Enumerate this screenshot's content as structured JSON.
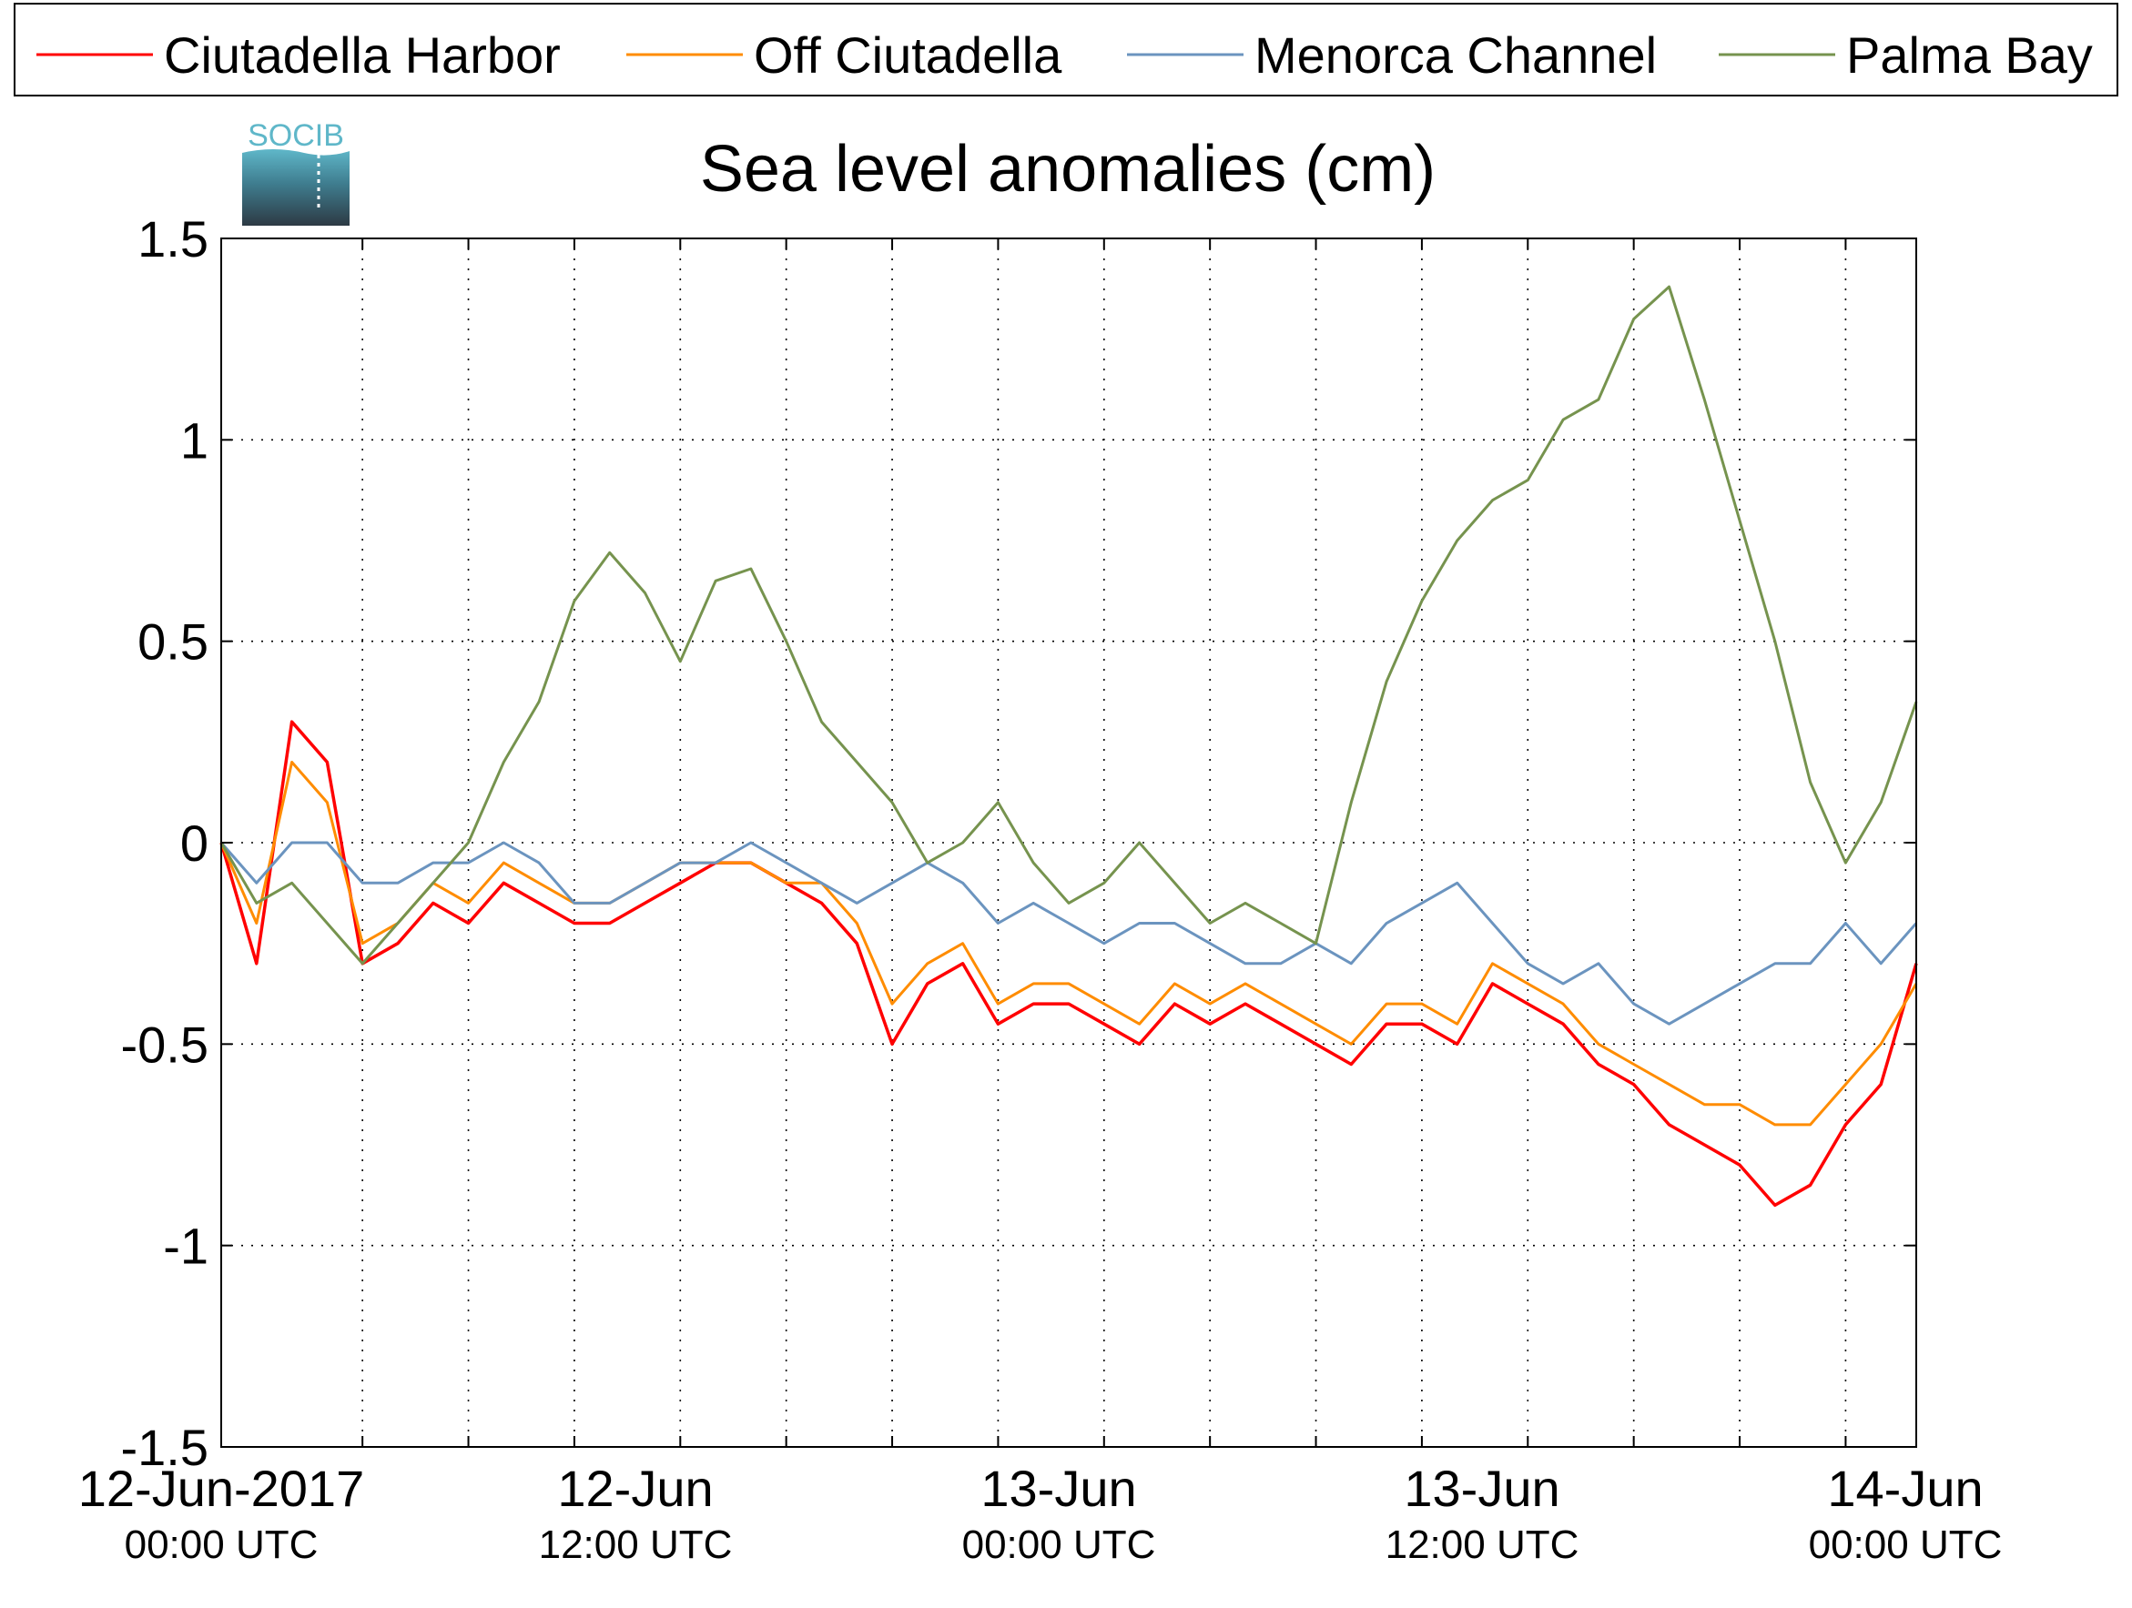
{
  "chart_data": {
    "type": "line",
    "title": "Sea level anomalies (cm)",
    "logo_text": "SOCIB",
    "xlabel": "",
    "ylabel": "",
    "ylim": [
      -1.5,
      1.5
    ],
    "y_ticks": [
      -1.5,
      -1,
      -0.5,
      0,
      0.5,
      1,
      1.5
    ],
    "y_tick_labels": [
      "-1.5",
      "-1",
      "-0.5",
      "0",
      "0.5",
      "1",
      "1.5"
    ],
    "x_range_hours": [
      -10,
      38
    ],
    "x_tick_labels": [
      {
        "date": "12-Jun-2017",
        "time": "00:00 UTC",
        "hour": 0
      },
      {
        "date": "12-Jun",
        "time": "12:00 UTC",
        "hour": 12
      },
      {
        "date": "13-Jun",
        "time": "00:00 UTC",
        "hour": 24
      },
      {
        "date": "13-Jun",
        "time": "12:00 UTC",
        "hour": 36
      },
      {
        "date": "14-Jun",
        "time": "00:00 UTC",
        "hour": 48
      }
    ],
    "grid": true,
    "legend_position": "top",
    "series": [
      {
        "name": "Ciutadella Harbor",
        "color": "#ff0000",
        "x": [
          -10,
          -9,
          -8,
          -7,
          -6,
          -5,
          -4,
          -3,
          -2,
          -1,
          0,
          1,
          2,
          3,
          4,
          5,
          6,
          7,
          8,
          9,
          10,
          11,
          12,
          13,
          14,
          15,
          16,
          17,
          18,
          19,
          20,
          21,
          22,
          23,
          24,
          25,
          26,
          27,
          28,
          29,
          30,
          31,
          32,
          33,
          34,
          35,
          36,
          37,
          38
        ],
        "values": [
          0.0,
          -0.3,
          0.3,
          0.2,
          -0.3,
          -0.25,
          -0.15,
          -0.2,
          -0.1,
          -0.15,
          -0.2,
          -0.2,
          -0.15,
          -0.1,
          -0.05,
          -0.05,
          -0.1,
          -0.15,
          -0.25,
          -0.5,
          -0.35,
          -0.3,
          -0.45,
          -0.4,
          -0.4,
          -0.45,
          -0.5,
          -0.4,
          -0.45,
          -0.4,
          -0.45,
          -0.5,
          -0.55,
          -0.45,
          -0.45,
          -0.5,
          -0.35,
          -0.4,
          -0.45,
          -0.55,
          -0.6,
          -0.7,
          -0.75,
          -0.8,
          -0.9,
          -0.85,
          -0.7,
          -0.6,
          -0.3
        ]
      },
      {
        "name": "Off Ciutadella",
        "color": "#ff8c00",
        "x": [
          -10,
          -9,
          -8,
          -7,
          -6,
          -5,
          -4,
          -3,
          -2,
          -1,
          0,
          1,
          2,
          3,
          4,
          5,
          6,
          7,
          8,
          9,
          10,
          11,
          12,
          13,
          14,
          15,
          16,
          17,
          18,
          19,
          20,
          21,
          22,
          23,
          24,
          25,
          26,
          27,
          28,
          29,
          30,
          31,
          32,
          33,
          34,
          35,
          36,
          37,
          38
        ],
        "values": [
          0.0,
          -0.2,
          0.2,
          0.1,
          -0.25,
          -0.2,
          -0.1,
          -0.15,
          -0.05,
          -0.1,
          -0.15,
          -0.15,
          -0.1,
          -0.05,
          -0.05,
          -0.05,
          -0.1,
          -0.1,
          -0.2,
          -0.4,
          -0.3,
          -0.25,
          -0.4,
          -0.35,
          -0.35,
          -0.4,
          -0.45,
          -0.35,
          -0.4,
          -0.35,
          -0.4,
          -0.45,
          -0.5,
          -0.4,
          -0.4,
          -0.45,
          -0.3,
          -0.35,
          -0.4,
          -0.5,
          -0.55,
          -0.6,
          -0.65,
          -0.65,
          -0.7,
          -0.7,
          -0.6,
          -0.5,
          -0.35
        ]
      },
      {
        "name": "Menorca Channel",
        "color": "#6b94bf",
        "x": [
          -10,
          -9,
          -8,
          -7,
          -6,
          -5,
          -4,
          -3,
          -2,
          -1,
          0,
          1,
          2,
          3,
          4,
          5,
          6,
          7,
          8,
          9,
          10,
          11,
          12,
          13,
          14,
          15,
          16,
          17,
          18,
          19,
          20,
          21,
          22,
          23,
          24,
          25,
          26,
          27,
          28,
          29,
          30,
          31,
          32,
          33,
          34,
          35,
          36,
          37,
          38
        ],
        "values": [
          0.0,
          -0.1,
          0.0,
          0.0,
          -0.1,
          -0.1,
          -0.05,
          -0.05,
          0.0,
          -0.05,
          -0.15,
          -0.15,
          -0.1,
          -0.05,
          -0.05,
          0.0,
          -0.05,
          -0.1,
          -0.15,
          -0.1,
          -0.05,
          -0.1,
          -0.2,
          -0.15,
          -0.2,
          -0.25,
          -0.2,
          -0.2,
          -0.25,
          -0.3,
          -0.3,
          -0.25,
          -0.3,
          -0.2,
          -0.15,
          -0.1,
          -0.2,
          -0.3,
          -0.35,
          -0.3,
          -0.4,
          -0.45,
          -0.4,
          -0.35,
          -0.3,
          -0.3,
          -0.2,
          -0.3,
          -0.2
        ]
      },
      {
        "name": "Palma Bay",
        "color": "#76934e",
        "x": [
          -10,
          -9,
          -8,
          -7,
          -6,
          -5,
          -4,
          -3,
          -2,
          -1,
          0,
          1,
          2,
          3,
          4,
          5,
          6,
          7,
          8,
          9,
          10,
          11,
          12,
          13,
          14,
          15,
          16,
          17,
          18,
          19,
          20,
          21,
          22,
          23,
          24,
          25,
          26,
          27,
          28,
          29,
          30,
          31,
          32,
          33,
          34,
          35,
          36,
          37,
          38
        ],
        "values": [
          0.0,
          -0.15,
          -0.1,
          -0.2,
          -0.3,
          -0.2,
          -0.1,
          0.0,
          0.2,
          0.35,
          0.6,
          0.72,
          0.62,
          0.45,
          0.65,
          0.68,
          0.5,
          0.3,
          0.2,
          0.1,
          -0.05,
          0.0,
          0.1,
          -0.05,
          -0.15,
          -0.1,
          0.0,
          -0.1,
          -0.2,
          -0.15,
          -0.2,
          -0.25,
          0.1,
          0.4,
          0.6,
          0.75,
          0.85,
          0.9,
          1.05,
          1.1,
          1.3,
          1.38,
          1.1,
          0.8,
          0.5,
          0.15,
          -0.05,
          0.1,
          0.35
        ]
      }
    ]
  }
}
